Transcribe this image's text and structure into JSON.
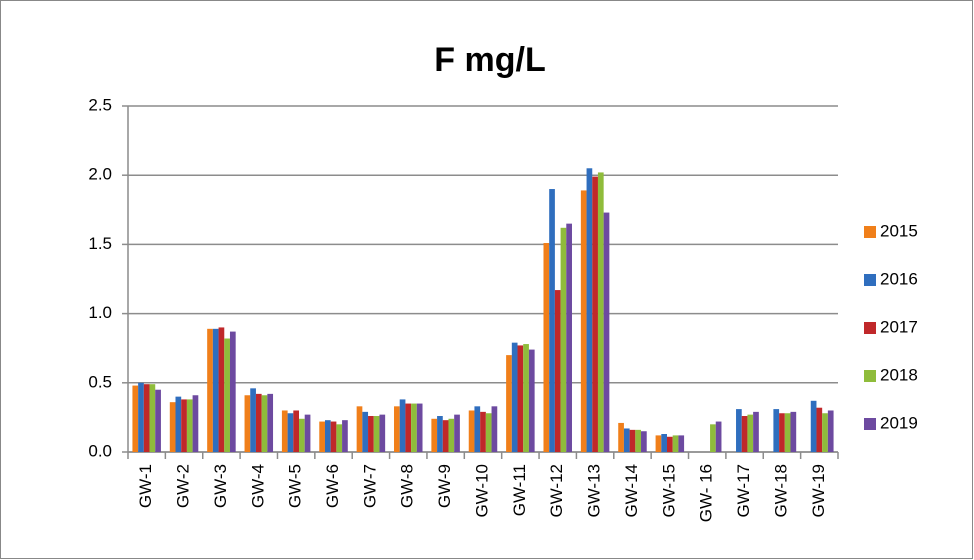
{
  "chart_data": {
    "type": "bar",
    "title": "F mg/L",
    "categories": [
      "GW-1",
      "GW-2",
      "GW-3",
      "GW-4",
      "GW-5",
      "GW-6",
      "GW-7",
      "GW-8",
      "GW-9",
      "GW-10",
      "GW-11",
      "GW-12",
      "GW-13",
      "GW-14",
      "GW-15",
      "GW- 16",
      "GW-17",
      "GW-18",
      "GW-19"
    ],
    "series": [
      {
        "name": "2015",
        "color": "#f07f1a",
        "values": [
          0.48,
          0.36,
          0.89,
          0.41,
          0.3,
          0.22,
          0.33,
          0.33,
          0.24,
          0.3,
          0.7,
          1.51,
          1.89,
          0.21,
          0.12,
          null,
          null,
          null,
          null
        ]
      },
      {
        "name": "2016",
        "color": "#2f6ebe",
        "values": [
          0.5,
          0.4,
          0.89,
          0.46,
          0.28,
          0.23,
          0.29,
          0.38,
          0.26,
          0.33,
          0.79,
          1.9,
          2.05,
          0.17,
          0.13,
          null,
          0.31,
          0.31,
          0.37
        ]
      },
      {
        "name": "2017",
        "color": "#c0282a",
        "values": [
          0.49,
          0.38,
          0.9,
          0.42,
          0.3,
          0.22,
          0.26,
          0.35,
          0.23,
          0.29,
          0.77,
          1.17,
          1.99,
          0.16,
          0.11,
          null,
          0.26,
          0.28,
          0.32
        ]
      },
      {
        "name": "2018",
        "color": "#8fbc3b",
        "values": [
          0.49,
          0.38,
          0.82,
          0.41,
          0.24,
          0.2,
          0.26,
          0.35,
          0.24,
          0.28,
          0.78,
          1.62,
          2.02,
          0.16,
          0.12,
          0.2,
          0.27,
          0.28,
          0.28
        ]
      },
      {
        "name": "2019",
        "color": "#6d4aa0",
        "values": [
          0.45,
          0.41,
          0.87,
          0.42,
          0.27,
          0.23,
          0.27,
          0.35,
          0.27,
          0.33,
          0.74,
          1.65,
          1.73,
          0.15,
          0.12,
          0.22,
          0.29,
          0.29,
          0.3
        ]
      }
    ],
    "ylim": [
      0,
      2.5
    ],
    "yticks": [
      {
        "value": 0,
        "label": "0.0"
      },
      0.5,
      {
        "value": 1,
        "label": "1.0"
      },
      1.5,
      {
        "value": 2,
        "label": "2.0"
      },
      2.5
    ],
    "grid": true,
    "legend": "right"
  }
}
